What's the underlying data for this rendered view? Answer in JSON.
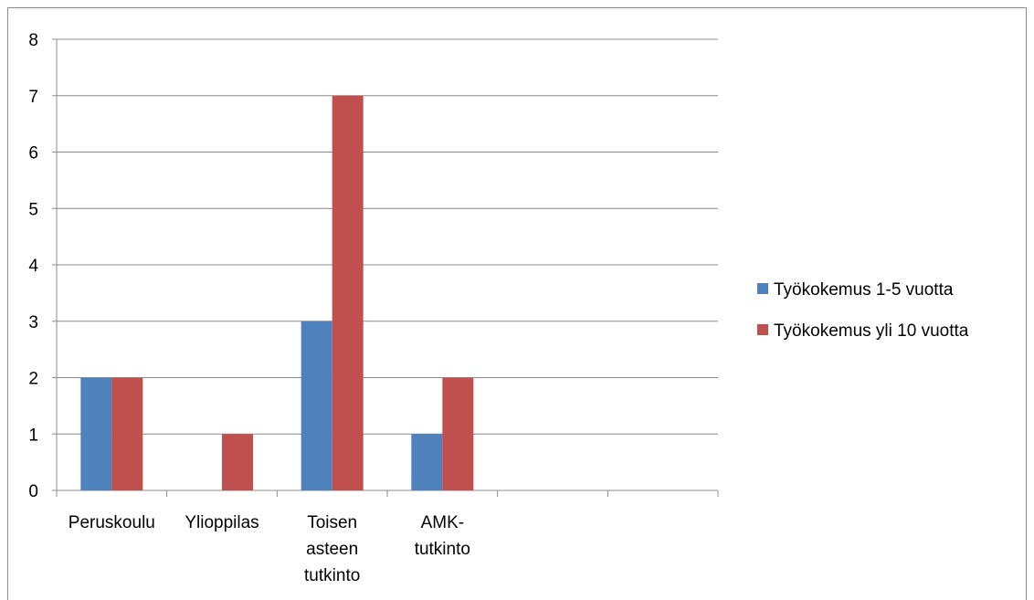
{
  "chart_data": {
    "type": "bar",
    "categories": [
      [
        "Peruskoulu"
      ],
      [
        "Ylioppilas"
      ],
      [
        "Toisen",
        "asteen",
        "tutkinto"
      ],
      [
        "AMK-",
        "tutkinto"
      ],
      [
        ""
      ],
      [
        ""
      ]
    ],
    "series": [
      {
        "name": "Työkokemus 1-5 vuotta",
        "color": "#4f81bd",
        "values": [
          2,
          0,
          3,
          1,
          0,
          0
        ]
      },
      {
        "name": "Työkokemus yli 10 vuotta",
        "color": "#c0504d",
        "values": [
          2,
          1,
          7,
          2,
          0,
          0
        ]
      }
    ],
    "ylim": [
      0,
      8
    ],
    "yticks": [
      0,
      1,
      2,
      3,
      4,
      5,
      6,
      7,
      8
    ],
    "grid": true,
    "legend": "right"
  }
}
